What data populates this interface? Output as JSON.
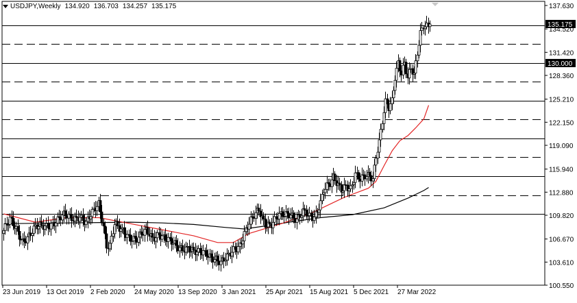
{
  "header": {
    "symbol_timeframe": "USDJPY,Weekly",
    "open": "134.920",
    "high": "136.703",
    "low": "134.257",
    "close": "135.175"
  },
  "colors": {
    "background": "#ffffff",
    "candle": "#000000",
    "bull_body": "#ffffff",
    "bear_body": "#000000",
    "ma_fast": "#e32424",
    "ma_slow": "#000000",
    "level_line": "#000000",
    "price_label_bg": "#000000",
    "price_label_text": "#ffffff"
  },
  "chart_data": {
    "type": "candlestick",
    "x_tick_labels": [
      "23 Jun 2019",
      "13 Oct 2019",
      "2 Feb 2020",
      "24 May 2020",
      "13 Sep 2020",
      "3 Jan 2021",
      "25 Apr 2021",
      "15 Aug 2021",
      "5 Dec 2021",
      "27 Mar 2022"
    ],
    "y_tick_labels": [
      "137.630",
      "134.520",
      "131.420",
      "128.360",
      "125.210",
      "122.150",
      "119.090",
      "115.940",
      "112.880",
      "109.820",
      "106.670",
      "103.610",
      "100.550"
    ],
    "ylim": [
      100.55,
      137.63
    ],
    "grid": false,
    "current_price_label": "135.175",
    "marked_level_label": "130.000",
    "horizontal_levels": [
      {
        "price": 135.0,
        "style": "solid"
      },
      {
        "price": 132.5,
        "style": "dashed"
      },
      {
        "price": 130.0,
        "style": "solid"
      },
      {
        "price": 127.5,
        "style": "dashed"
      },
      {
        "price": 125.0,
        "style": "solid"
      },
      {
        "price": 122.5,
        "style": "dashed"
      },
      {
        "price": 120.0,
        "style": "solid"
      },
      {
        "price": 117.5,
        "style": "dashed"
      },
      {
        "price": 115.0,
        "style": "solid"
      },
      {
        "price": 112.5,
        "style": "dashed"
      },
      {
        "price": 110.0,
        "style": "solid"
      }
    ],
    "close_path": [
      [
        0,
        107.8
      ],
      [
        4,
        109.0
      ],
      [
        8,
        107.9
      ],
      [
        12,
        106.6
      ],
      [
        16,
        107.2
      ],
      [
        20,
        108.0
      ],
      [
        26,
        108.4
      ],
      [
        32,
        109.0
      ],
      [
        38,
        109.6
      ],
      [
        44,
        109.5
      ],
      [
        48,
        109.9
      ],
      [
        52,
        108.7
      ],
      [
        56,
        109.9
      ],
      [
        60,
        111.4
      ],
      [
        63,
        108.6
      ],
      [
        65,
        106.0
      ],
      [
        67,
        105.9
      ],
      [
        70,
        108.5
      ],
      [
        73,
        107.8
      ],
      [
        78,
        107.2
      ],
      [
        84,
        106.8
      ],
      [
        90,
        107.5
      ],
      [
        94,
        106.8
      ],
      [
        98,
        107.6
      ],
      [
        104,
        106.3
      ],
      [
        110,
        105.5
      ],
      [
        116,
        105.7
      ],
      [
        122,
        104.6
      ],
      [
        128,
        104.8
      ],
      [
        134,
        104.2
      ],
      [
        137,
        103.4
      ],
      [
        141,
        104.0
      ],
      [
        145,
        105.3
      ],
      [
        149,
        106.1
      ],
      [
        153,
        107.9
      ],
      [
        157,
        109.2
      ],
      [
        161,
        110.5
      ],
      [
        165,
        108.9
      ],
      [
        169,
        108.7
      ],
      [
        173,
        109.4
      ],
      [
        177,
        109.8
      ],
      [
        181,
        110.2
      ],
      [
        185,
        109.4
      ],
      [
        189,
        110.1
      ],
      [
        193,
        109.4
      ],
      [
        196,
        109.6
      ],
      [
        198,
        110.7
      ],
      [
        200,
        111.8
      ],
      [
        202,
        113.4
      ],
      [
        204,
        113.7
      ],
      [
        206,
        113.8
      ],
      [
        208,
        114.5
      ],
      [
        210,
        113.9
      ],
      [
        213,
        113.3
      ],
      [
        216,
        114.0
      ],
      [
        219,
        113.5
      ],
      [
        222,
        115.1
      ],
      [
        225,
        114.3
      ],
      [
        228,
        114.9
      ],
      [
        231,
        115.3
      ],
      [
        233,
        114.9
      ],
      [
        235,
        117.9
      ],
      [
        237,
        119.6
      ],
      [
        239,
        122.2
      ],
      [
        241,
        124.5
      ],
      [
        243,
        123.8
      ],
      [
        245,
        124.8
      ],
      [
        247,
        128.2
      ],
      [
        249,
        130.3
      ],
      [
        251,
        129.0
      ],
      [
        253,
        130.2
      ],
      [
        255,
        128.0
      ],
      [
        257,
        129.1
      ],
      [
        259,
        128.1
      ],
      [
        261,
        131.1
      ],
      [
        263,
        133.9
      ],
      [
        265,
        135.2
      ]
    ],
    "ma_fast": [
      [
        0,
        110.0
      ],
      [
        20,
        108.9
      ],
      [
        40,
        109.5
      ],
      [
        60,
        109.5
      ],
      [
        80,
        108.7
      ],
      [
        100,
        107.9
      ],
      [
        120,
        107.1
      ],
      [
        135,
        106.2
      ],
      [
        145,
        106.2
      ],
      [
        155,
        107.4
      ],
      [
        175,
        108.7
      ],
      [
        195,
        110.2
      ],
      [
        215,
        112.2
      ],
      [
        230,
        113.4
      ],
      [
        235,
        114.3
      ],
      [
        240,
        116.4
      ],
      [
        245,
        118.4
      ],
      [
        250,
        119.7
      ],
      [
        255,
        120.4
      ],
      [
        260,
        121.4
      ],
      [
        265,
        122.6
      ],
      [
        268,
        124.4
      ]
    ],
    "ma_slow": [
      [
        0,
        108.7
      ],
      [
        40,
        108.8
      ],
      [
        80,
        108.9
      ],
      [
        100,
        108.8
      ],
      [
        120,
        108.6
      ],
      [
        140,
        108.2
      ],
      [
        152,
        108.0
      ],
      [
        165,
        108.4
      ],
      [
        180,
        108.9
      ],
      [
        200,
        109.5
      ],
      [
        220,
        109.9
      ],
      [
        240,
        110.8
      ],
      [
        255,
        112.1
      ],
      [
        265,
        113.1
      ],
      [
        268,
        113.5
      ]
    ],
    "n_bars": 270
  }
}
